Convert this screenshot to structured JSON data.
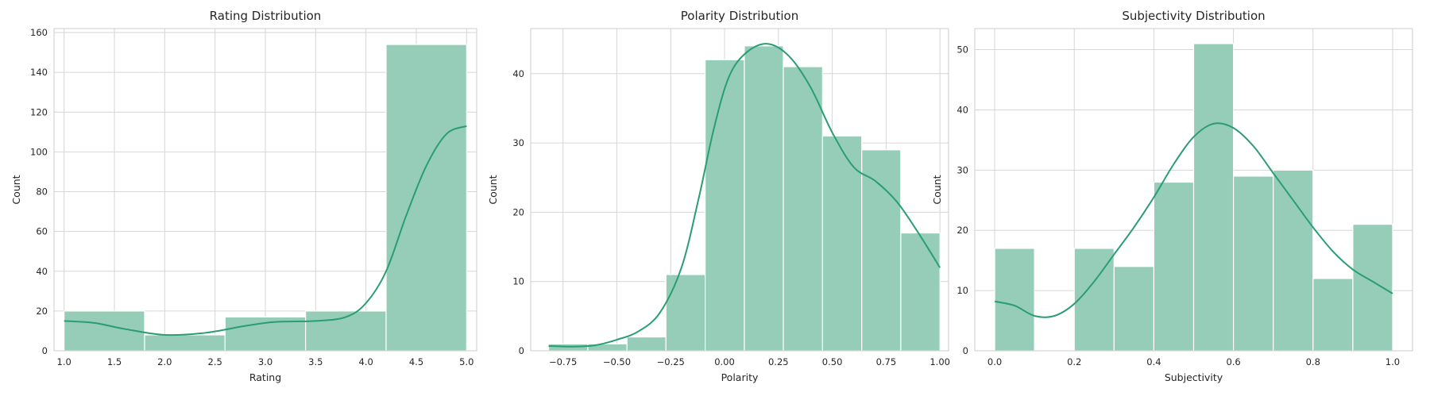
{
  "chart_data": [
    {
      "type": "histogram",
      "title": "Rating Distribution",
      "xlabel": "Rating",
      "ylabel": "Count",
      "xlim": [
        0.9,
        5.1
      ],
      "ylim": [
        0,
        162
      ],
      "xticks": [
        1.0,
        1.5,
        2.0,
        2.5,
        3.0,
        3.5,
        4.0,
        4.5,
        5.0
      ],
      "xtick_labels": [
        "1.0",
        "1.5",
        "2.0",
        "2.5",
        "3.0",
        "3.5",
        "4.0",
        "4.5",
        "5.0"
      ],
      "yticks": [
        0,
        20,
        40,
        60,
        80,
        100,
        120,
        140,
        160
      ],
      "ytick_labels": [
        "0",
        "20",
        "40",
        "60",
        "80",
        "100",
        "120",
        "140",
        "160"
      ],
      "bins": [
        {
          "x0": 1.0,
          "x1": 1.8,
          "count": 20
        },
        {
          "x0": 1.8,
          "x1": 2.6,
          "count": 8
        },
        {
          "x0": 2.6,
          "x1": 3.4,
          "count": 17
        },
        {
          "x0": 3.4,
          "x1": 4.2,
          "count": 20
        },
        {
          "x0": 4.2,
          "x1": 5.0,
          "count": 154
        }
      ],
      "kde": [
        [
          1.0,
          15
        ],
        [
          1.3,
          14
        ],
        [
          1.6,
          11
        ],
        [
          2.0,
          8
        ],
        [
          2.4,
          9
        ],
        [
          2.8,
          12.5
        ],
        [
          3.1,
          14.5
        ],
        [
          3.5,
          15
        ],
        [
          3.8,
          17
        ],
        [
          4.0,
          24
        ],
        [
          4.2,
          40
        ],
        [
          4.4,
          68
        ],
        [
          4.6,
          93
        ],
        [
          4.8,
          109
        ],
        [
          5.0,
          113
        ]
      ],
      "grid": true,
      "color": "#2a9d74",
      "fill_color": "#96cdb9"
    },
    {
      "type": "histogram",
      "title": "Polarity Distribution",
      "xlabel": "Polarity",
      "ylabel": "Count",
      "xlim": [
        -0.9,
        1.04
      ],
      "ylim": [
        0,
        46.5
      ],
      "xticks": [
        -0.75,
        -0.5,
        -0.25,
        0.0,
        0.25,
        0.5,
        0.75,
        1.0
      ],
      "xtick_labels": [
        "−0.75",
        "−0.50",
        "−0.25",
        "0.00",
        "0.25",
        "0.50",
        "0.75",
        "1.00"
      ],
      "yticks": [
        0,
        10,
        20,
        30,
        40
      ],
      "ytick_labels": [
        "0",
        "10",
        "20",
        "30",
        "40"
      ],
      "bins": [
        {
          "x0": -0.817,
          "x1": -0.635,
          "count": 1
        },
        {
          "x0": -0.635,
          "x1": -0.453,
          "count": 1
        },
        {
          "x0": -0.453,
          "x1": -0.272,
          "count": 2
        },
        {
          "x0": -0.272,
          "x1": -0.09,
          "count": 11
        },
        {
          "x0": -0.09,
          "x1": 0.092,
          "count": 42
        },
        {
          "x0": 0.092,
          "x1": 0.273,
          "count": 44
        },
        {
          "x0": 0.273,
          "x1": 0.455,
          "count": 41
        },
        {
          "x0": 0.455,
          "x1": 0.637,
          "count": 31
        },
        {
          "x0": 0.637,
          "x1": 0.818,
          "count": 29
        },
        {
          "x0": 0.818,
          "x1": 1.0,
          "count": 17
        }
      ],
      "kde": [
        [
          -0.817,
          0.7
        ],
        [
          -0.7,
          0.6
        ],
        [
          -0.6,
          0.8
        ],
        [
          -0.5,
          1.6
        ],
        [
          -0.4,
          2.8
        ],
        [
          -0.3,
          5.5
        ],
        [
          -0.2,
          12
        ],
        [
          -0.12,
          22
        ],
        [
          -0.05,
          32
        ],
        [
          0.02,
          39.5
        ],
        [
          0.1,
          43
        ],
        [
          0.2,
          44.3
        ],
        [
          0.3,
          42.5
        ],
        [
          0.4,
          38
        ],
        [
          0.5,
          31.5
        ],
        [
          0.6,
          26.5
        ],
        [
          0.7,
          24.5
        ],
        [
          0.8,
          21.5
        ],
        [
          0.9,
          17
        ],
        [
          1.0,
          12
        ]
      ],
      "grid": true,
      "color": "#2a9d74",
      "fill_color": "#96cdb9"
    },
    {
      "type": "histogram",
      "title": "Subjectivity Distribution",
      "xlabel": "Subjectivity",
      "ylabel": "Count",
      "xlim": [
        -0.05,
        1.05
      ],
      "ylim": [
        0,
        53.5
      ],
      "xticks": [
        0.0,
        0.2,
        0.4,
        0.6,
        0.8,
        1.0
      ],
      "xtick_labels": [
        "0.0",
        "0.2",
        "0.4",
        "0.6",
        "0.8",
        "1.0"
      ],
      "yticks": [
        0,
        10,
        20,
        30,
        40,
        50
      ],
      "ytick_labels": [
        "0",
        "10",
        "20",
        "30",
        "40",
        "50"
      ],
      "bins": [
        {
          "x0": 0.0,
          "x1": 0.1,
          "count": 17
        },
        {
          "x0": 0.1,
          "x1": 0.2,
          "count": 0
        },
        {
          "x0": 0.2,
          "x1": 0.3,
          "count": 17
        },
        {
          "x0": 0.3,
          "x1": 0.4,
          "count": 14
        },
        {
          "x0": 0.4,
          "x1": 0.5,
          "count": 28
        },
        {
          "x0": 0.5,
          "x1": 0.6,
          "count": 51
        },
        {
          "x0": 0.6,
          "x1": 0.7,
          "count": 29
        },
        {
          "x0": 0.7,
          "x1": 0.8,
          "count": 30
        },
        {
          "x0": 0.8,
          "x1": 0.9,
          "count": 12
        },
        {
          "x0": 0.9,
          "x1": 1.0,
          "count": 21
        }
      ],
      "kde": [
        [
          0.0,
          8.2
        ],
        [
          0.05,
          7.5
        ],
        [
          0.1,
          5.8
        ],
        [
          0.15,
          5.8
        ],
        [
          0.2,
          7.8
        ],
        [
          0.25,
          11.5
        ],
        [
          0.3,
          16
        ],
        [
          0.35,
          20.5
        ],
        [
          0.4,
          25.5
        ],
        [
          0.45,
          31
        ],
        [
          0.5,
          35.5
        ],
        [
          0.55,
          37.7
        ],
        [
          0.6,
          37
        ],
        [
          0.65,
          34
        ],
        [
          0.7,
          29.5
        ],
        [
          0.75,
          25
        ],
        [
          0.8,
          20.5
        ],
        [
          0.85,
          16.5
        ],
        [
          0.9,
          13.5
        ],
        [
          0.95,
          11.5
        ],
        [
          1.0,
          9.5
        ]
      ],
      "grid": true,
      "color": "#2a9d74",
      "fill_color": "#96cdb9"
    }
  ]
}
